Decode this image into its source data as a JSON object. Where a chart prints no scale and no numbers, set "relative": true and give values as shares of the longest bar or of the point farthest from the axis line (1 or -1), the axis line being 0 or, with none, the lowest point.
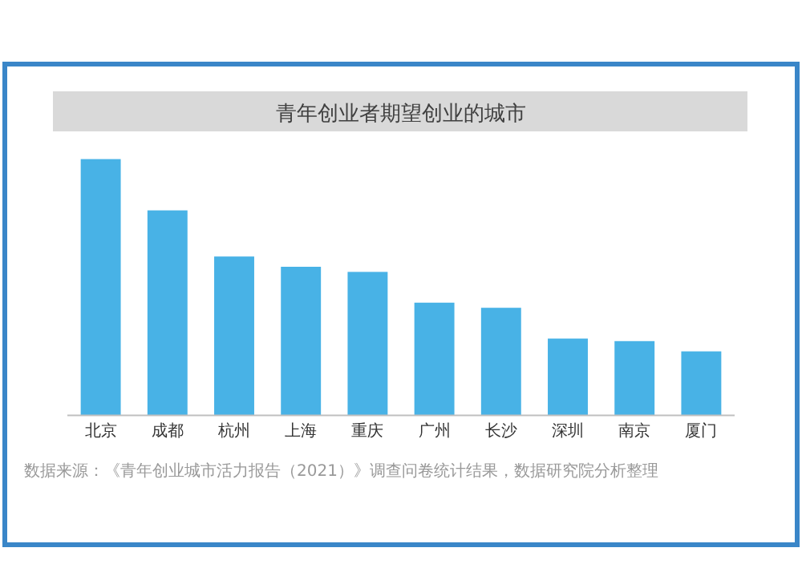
{
  "chart_data": {
    "type": "bar",
    "title": "青年创业者期望创业的城市",
    "categories": [
      "北京",
      "成都",
      "杭州",
      "上海",
      "重庆",
      "广州",
      "长沙",
      "深圳",
      "南京",
      "厦门"
    ],
    "values": [
      1,
      0.8,
      0.62,
      0.58,
      0.56,
      0.44,
      0.42,
      0.3,
      0.29,
      0.25
    ],
    "color": "#48b2e6",
    "relative": true,
    "annotations": [
      "数据来源：《青年创业城市活力报告（2021）》调查问卷统计结果，数据研究院分析整理"
    ]
  }
}
